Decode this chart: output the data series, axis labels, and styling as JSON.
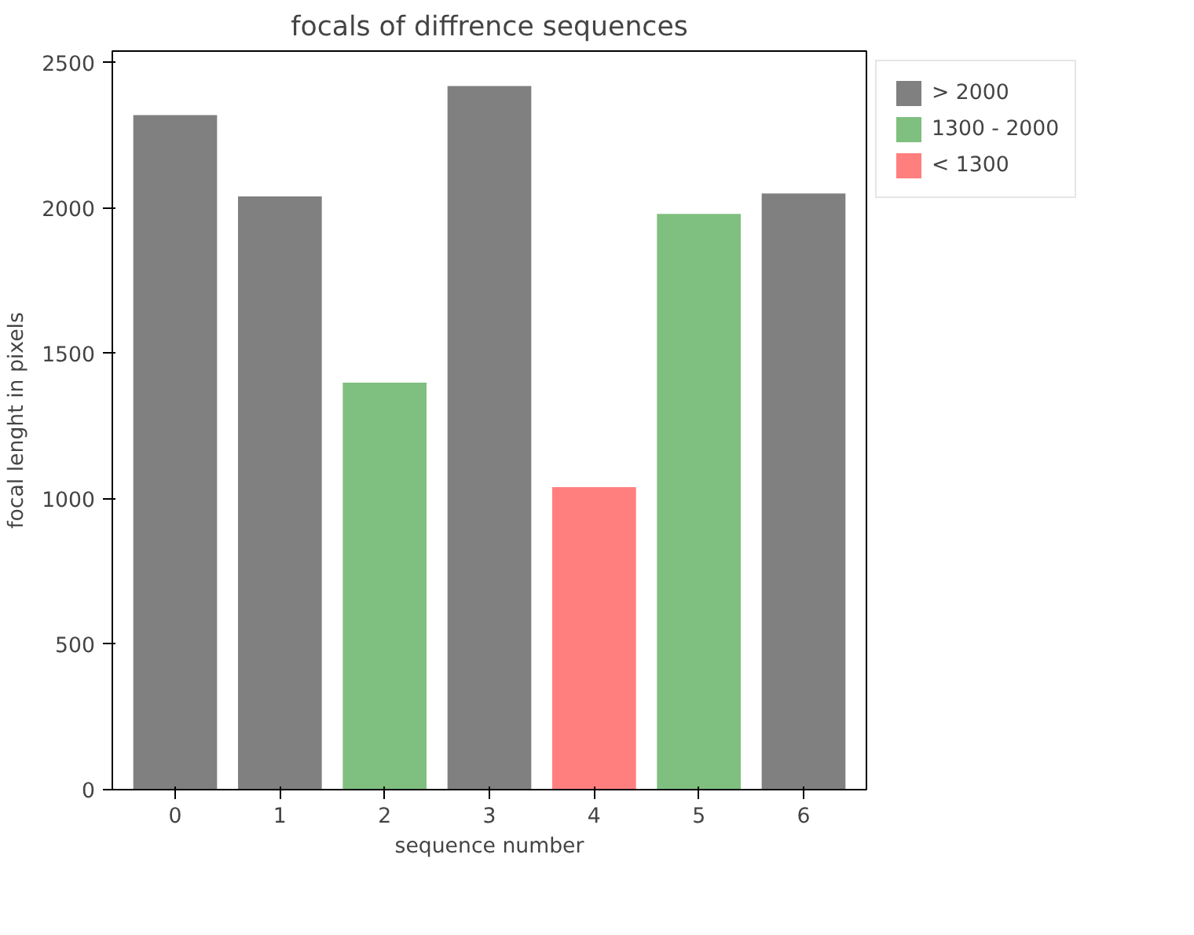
{
  "chart_data": {
    "type": "bar",
    "title": "focals of diffrence sequences",
    "xlabel": "sequence number",
    "ylabel": "focal lenght in pixels",
    "categories": [
      "0",
      "1",
      "2",
      "3",
      "4",
      "5",
      "6"
    ],
    "series": [
      {
        "name": "> 2000",
        "color": "#808080",
        "values": [
          2320,
          2040,
          null,
          2420,
          null,
          null,
          2050
        ]
      },
      {
        "name": "1300 - 2000",
        "color": "#7fbf7f",
        "values": [
          null,
          null,
          1400,
          null,
          null,
          1980,
          null
        ]
      },
      {
        "name": "< 1300",
        "color": "#ff7f7f",
        "values": [
          null,
          null,
          null,
          null,
          1040,
          null,
          null
        ]
      }
    ],
    "ylim": [
      0,
      2540
    ],
    "yticks": [
      0,
      500,
      1000,
      1500,
      2000,
      2500
    ],
    "grid": false,
    "legend": "top right"
  }
}
